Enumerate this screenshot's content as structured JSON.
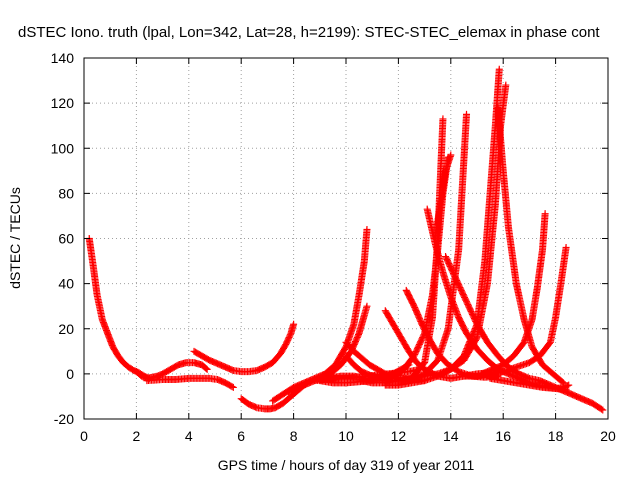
{
  "chart_data": {
    "type": "scatter",
    "title": "dSTEC Iono. truth (lpal, Lon=342, Lat=28, h=2199): STEC-STEC_elemax in phase cont",
    "xlabel": "GPS time / hours of day 319 of year 2011",
    "ylabel": "dSTEC  / TECUs",
    "xlim": [
      0,
      20
    ],
    "ylim": [
      -20,
      140
    ],
    "xticks": [
      0,
      2,
      4,
      6,
      8,
      10,
      12,
      14,
      16,
      18,
      20
    ],
    "yticks": [
      -20,
      0,
      20,
      40,
      60,
      80,
      100,
      120,
      140
    ],
    "grid": true,
    "marker": "+",
    "color": "#ff0000",
    "series": [
      {
        "x": [
          0.2,
          0.35,
          0.5,
          0.7,
          0.9,
          1.1,
          1.3,
          1.5,
          1.7,
          1.9,
          2.1,
          2.3,
          2.5
        ],
        "y": [
          60,
          48,
          35,
          24,
          18,
          12,
          8,
          5,
          3,
          1.5,
          0.5,
          -1,
          -2
        ]
      },
      {
        "x": [
          2.0,
          2.2,
          2.4,
          2.6,
          2.8,
          3.0,
          3.3,
          3.6,
          3.9,
          4.2,
          4.5,
          4.7
        ],
        "y": [
          1,
          -1,
          -2,
          -1.5,
          -1,
          0,
          2,
          4,
          5,
          5,
          4,
          2
        ]
      },
      {
        "x": [
          2.4,
          3.0,
          3.5,
          4.0,
          4.4,
          4.8,
          5.1,
          5.4,
          5.7
        ],
        "y": [
          -3,
          -2.5,
          -2.5,
          -2,
          -2,
          -2,
          -2.5,
          -4,
          -6
        ]
      },
      {
        "x": [
          4.2,
          4.5,
          4.8,
          5.1,
          5.4,
          5.7,
          6.0,
          6.3,
          6.6,
          6.9,
          7.2,
          7.5,
          7.7,
          7.9,
          8.0
        ],
        "y": [
          10,
          8,
          6,
          4.5,
          3,
          1.5,
          1,
          1,
          1.5,
          3,
          5,
          9,
          13,
          18,
          22
        ]
      },
      {
        "x": [
          6.0,
          6.3,
          6.6,
          6.9,
          7.1,
          7.3,
          7.6,
          7.9,
          8.2,
          8.5
        ],
        "y": [
          -11,
          -13.5,
          -15,
          -15.5,
          -15.5,
          -15,
          -13,
          -10,
          -7,
          -4
        ]
      },
      {
        "x": [
          7.2,
          7.6,
          8.0,
          8.4,
          8.8,
          9.2,
          9.6,
          10.0,
          10.3,
          10.5,
          10.7,
          10.8
        ],
        "y": [
          -12,
          -9,
          -6,
          -4,
          -2,
          0,
          4,
          12,
          22,
          35,
          50,
          64
        ]
      },
      {
        "x": [
          7.8,
          8.2,
          8.6,
          9.0,
          9.4,
          9.8,
          10.2,
          10.5,
          10.8
        ],
        "y": [
          -8,
          -6,
          -4,
          -2,
          0,
          4,
          10,
          18,
          30
        ]
      },
      {
        "x": [
          8.8,
          9.2,
          9.6,
          10.0,
          10.4,
          10.8,
          11.2,
          11.6,
          12.0,
          12.4,
          12.8
        ],
        "y": [
          -3,
          -2.5,
          -2,
          -2,
          -1.5,
          -1,
          -0.5,
          0,
          0.5,
          1,
          2
        ]
      },
      {
        "x": [
          9.3,
          9.8,
          10.3,
          10.8,
          11.2,
          11.5,
          11.8,
          12.0
        ],
        "y": [
          -2,
          -1,
          -1,
          -2,
          -2,
          -1,
          0,
          1
        ]
      },
      {
        "x": [
          9.0,
          9.5,
          10.0,
          10.5,
          11.0,
          11.4,
          11.8,
          12.1,
          12.4
        ],
        "y": [
          -3,
          -4,
          -4,
          -3.5,
          -3,
          -2,
          0,
          2,
          4
        ]
      },
      {
        "x": [
          10.0,
          10.3,
          10.6,
          11.0,
          11.4,
          11.8,
          12.2,
          12.6,
          13.0,
          13.3,
          13.5,
          13.7,
          13.9
        ],
        "y": [
          8,
          4,
          1,
          -1,
          -2,
          -1,
          2,
          8,
          18,
          35,
          55,
          80,
          96
        ]
      },
      {
        "x": [
          10.6,
          11.0,
          11.5,
          12.0,
          12.5,
          13.0,
          13.5,
          13.9,
          14.3,
          14.6
        ],
        "y": [
          -3,
          -4,
          -4,
          -3,
          -2,
          0,
          6,
          20,
          55,
          115
        ]
      },
      {
        "x": [
          11.0,
          11.5,
          12.0,
          12.5,
          13.0,
          13.3,
          13.5,
          13.7
        ],
        "y": [
          -2,
          -3,
          -3,
          -2,
          5,
          25,
          60,
          113
        ]
      },
      {
        "x": [
          10.0,
          10.3,
          10.6,
          10.9,
          11.2,
          11.5,
          11.8,
          12.2,
          12.6,
          13.0
        ],
        "y": [
          14,
          10,
          7,
          4,
          2,
          0,
          -1,
          -2,
          -2.5,
          -3
        ]
      },
      {
        "x": [
          11.5,
          11.8,
          12.1,
          12.4,
          12.7,
          13.0,
          13.5,
          14.0,
          14.5,
          15.0,
          15.5,
          16.0
        ],
        "y": [
          28,
          22,
          16,
          10,
          5,
          2,
          -1,
          -2,
          -1,
          0,
          0.5,
          1
        ]
      },
      {
        "x": [
          12.3,
          12.6,
          12.9,
          13.2,
          13.5,
          13.9,
          14.3,
          14.8,
          15.3,
          15.8
        ],
        "y": [
          37,
          30,
          22,
          15,
          9,
          4,
          1,
          -1,
          -1.5,
          -1
        ]
      },
      {
        "x": [
          13.1,
          13.4,
          13.7,
          14.0,
          14.3,
          14.6,
          15.0,
          15.4,
          15.8,
          16.2,
          16.6,
          17.0,
          17.5,
          18.0,
          18.4
        ],
        "y": [
          73,
          58,
          45,
          34,
          25,
          18,
          11,
          6,
          2,
          0,
          -2,
          -4,
          -5.5,
          -6.5,
          -7
        ]
      },
      {
        "x": [
          13.8,
          14.2,
          14.6,
          15.0,
          15.4,
          15.8,
          16.2,
          16.6,
          17.0,
          17.4,
          17.8,
          18.2,
          18.6,
          19.0,
          19.4,
          19.8
        ],
        "y": [
          52,
          42,
          32,
          22,
          14,
          8,
          3,
          0,
          -2,
          -3,
          -5,
          -7,
          -9,
          -11,
          -13,
          -16
        ]
      },
      {
        "x": [
          12.0,
          12.5,
          13.0,
          13.5,
          14.0,
          14.5,
          15.0,
          15.4,
          15.7,
          15.9,
          16.1
        ],
        "y": [
          -3,
          -2,
          -1,
          0,
          2,
          6,
          16,
          40,
          75,
          110,
          128
        ]
      },
      {
        "x": [
          11.5,
          12.0,
          12.5,
          13.0,
          13.5,
          14.0,
          14.5,
          15.0,
          15.3,
          15.5,
          15.7,
          15.85
        ],
        "y": [
          -5,
          -5,
          -4,
          -3,
          -1,
          2,
          8,
          22,
          50,
          80,
          110,
          135
        ]
      },
      {
        "x": [
          15.8,
          16.0,
          16.2,
          16.5,
          16.8,
          17.1,
          17.5,
          17.9,
          18.3
        ],
        "y": [
          118,
          90,
          65,
          40,
          24,
          12,
          4,
          0,
          -4
        ]
      },
      {
        "x": [
          15.2,
          15.6,
          16.0,
          16.4,
          16.8,
          17.1,
          17.3,
          17.5,
          17.6
        ],
        "y": [
          0,
          2,
          4,
          8,
          14,
          24,
          38,
          55,
          71
        ]
      },
      {
        "x": [
          14.5,
          15.0,
          15.5,
          16.0,
          16.5,
          17.0,
          17.4,
          17.8,
          18.0,
          18.2,
          18.4
        ],
        "y": [
          -1,
          -1,
          0,
          1,
          3,
          5,
          8,
          14,
          25,
          40,
          56
        ]
      },
      {
        "x": [
          15.5,
          16.0,
          16.5,
          17.0,
          17.5,
          18.0,
          18.3,
          18.5
        ],
        "y": [
          -2,
          -3,
          -4,
          -5,
          -6,
          -6.5,
          -6,
          -5
        ]
      },
      {
        "x": [
          13.4,
          13.6,
          13.8,
          14.0
        ],
        "y": [
          60,
          75,
          90,
          97
        ]
      }
    ]
  }
}
